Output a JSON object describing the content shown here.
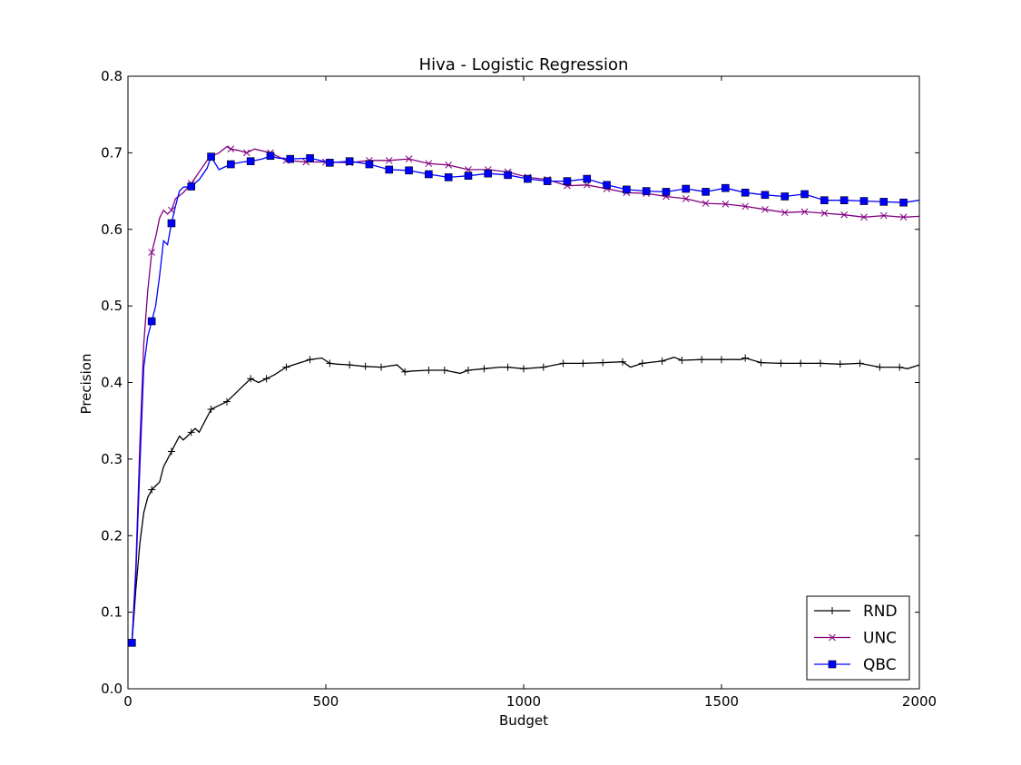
{
  "chart_data": {
    "type": "line",
    "title": "Hiva - Logistic Regression",
    "xlabel": "Budget",
    "ylabel": "Precision",
    "xlim": [
      0,
      2000
    ],
    "ylim": [
      0.0,
      0.8
    ],
    "xticks": [
      0,
      500,
      1000,
      1500,
      2000
    ],
    "xtick_labels": [
      "0",
      "500",
      "1000",
      "1500",
      "2000"
    ],
    "yticks": [
      0.0,
      0.1,
      0.2,
      0.3,
      0.4,
      0.5,
      0.6,
      0.7,
      0.8
    ],
    "ytick_labels": [
      "0.0",
      "0.1",
      "0.2",
      "0.3",
      "0.4",
      "0.5",
      "0.6",
      "0.7",
      "0.8"
    ],
    "grid": false,
    "legend_position": "lower-right",
    "series": [
      {
        "name": "RND",
        "color": "#000000",
        "marker": "plus",
        "x": [
          10,
          20,
          30,
          40,
          50,
          60,
          70,
          80,
          90,
          100,
          110,
          120,
          130,
          140,
          150,
          160,
          170,
          180,
          190,
          200,
          210,
          230,
          250,
          270,
          290,
          310,
          330,
          350,
          370,
          400,
          430,
          460,
          490,
          510,
          530,
          560,
          600,
          640,
          680,
          700,
          720,
          760,
          800,
          840,
          860,
          900,
          940,
          960,
          1000,
          1050,
          1100,
          1150,
          1200,
          1250,
          1270,
          1300,
          1350,
          1380,
          1400,
          1450,
          1500,
          1550,
          1560,
          1600,
          1650,
          1700,
          1750,
          1800,
          1850,
          1900,
          1950,
          1970,
          2000
        ],
        "y": [
          0.06,
          0.13,
          0.19,
          0.23,
          0.25,
          0.26,
          0.265,
          0.27,
          0.29,
          0.3,
          0.31,
          0.32,
          0.33,
          0.325,
          0.33,
          0.335,
          0.34,
          0.335,
          0.345,
          0.355,
          0.365,
          0.37,
          0.375,
          0.385,
          0.395,
          0.405,
          0.4,
          0.405,
          0.41,
          0.42,
          0.425,
          0.43,
          0.432,
          0.425,
          0.424,
          0.423,
          0.421,
          0.42,
          0.423,
          0.414,
          0.415,
          0.416,
          0.416,
          0.412,
          0.416,
          0.418,
          0.42,
          0.42,
          0.418,
          0.42,
          0.425,
          0.425,
          0.426,
          0.427,
          0.42,
          0.425,
          0.428,
          0.433,
          0.429,
          0.43,
          0.43,
          0.43,
          0.432,
          0.426,
          0.425,
          0.425,
          0.425,
          0.424,
          0.425,
          0.42,
          0.42,
          0.418,
          0.423
        ]
      },
      {
        "name": "UNC",
        "color": "#800080",
        "marker": "x",
        "x": [
          10,
          20,
          30,
          40,
          50,
          60,
          70,
          80,
          90,
          100,
          110,
          120,
          140,
          160,
          180,
          200,
          210,
          230,
          250,
          260,
          280,
          300,
          320,
          360,
          400,
          450,
          500,
          560,
          610,
          660,
          710,
          760,
          810,
          860,
          910,
          960,
          1010,
          1060,
          1110,
          1160,
          1210,
          1260,
          1310,
          1360,
          1410,
          1460,
          1510,
          1560,
          1610,
          1660,
          1710,
          1760,
          1810,
          1860,
          1910,
          1960,
          2000
        ],
        "y": [
          0.06,
          0.16,
          0.32,
          0.45,
          0.52,
          0.57,
          0.59,
          0.615,
          0.625,
          0.62,
          0.625,
          0.64,
          0.648,
          0.66,
          0.675,
          0.69,
          0.695,
          0.7,
          0.708,
          0.705,
          0.703,
          0.7,
          0.705,
          0.7,
          0.69,
          0.688,
          0.688,
          0.687,
          0.69,
          0.69,
          0.692,
          0.686,
          0.684,
          0.678,
          0.678,
          0.675,
          0.668,
          0.665,
          0.657,
          0.658,
          0.653,
          0.648,
          0.647,
          0.643,
          0.64,
          0.634,
          0.633,
          0.63,
          0.626,
          0.622,
          0.623,
          0.621,
          0.619,
          0.616,
          0.618,
          0.616,
          0.617
        ]
      },
      {
        "name": "QBC",
        "color": "#0000ff",
        "marker": "square",
        "x": [
          10,
          20,
          30,
          40,
          50,
          60,
          70,
          80,
          90,
          100,
          110,
          120,
          130,
          140,
          160,
          180,
          200,
          210,
          230,
          260,
          290,
          310,
          340,
          360,
          380,
          410,
          460,
          510,
          560,
          610,
          660,
          710,
          760,
          810,
          860,
          910,
          960,
          1010,
          1060,
          1110,
          1160,
          1210,
          1260,
          1310,
          1360,
          1410,
          1460,
          1510,
          1560,
          1610,
          1660,
          1710,
          1760,
          1810,
          1860,
          1910,
          1960,
          2000
        ],
        "y": [
          0.06,
          0.15,
          0.29,
          0.42,
          0.46,
          0.48,
          0.5,
          0.54,
          0.585,
          0.58,
          0.608,
          0.63,
          0.65,
          0.655,
          0.656,
          0.665,
          0.68,
          0.695,
          0.678,
          0.685,
          0.688,
          0.689,
          0.692,
          0.696,
          0.693,
          0.692,
          0.693,
          0.687,
          0.689,
          0.685,
          0.678,
          0.677,
          0.672,
          0.668,
          0.67,
          0.673,
          0.671,
          0.666,
          0.663,
          0.663,
          0.666,
          0.658,
          0.652,
          0.65,
          0.649,
          0.653,
          0.649,
          0.654,
          0.648,
          0.645,
          0.643,
          0.646,
          0.638,
          0.638,
          0.637,
          0.636,
          0.635,
          0.638
        ]
      }
    ]
  }
}
